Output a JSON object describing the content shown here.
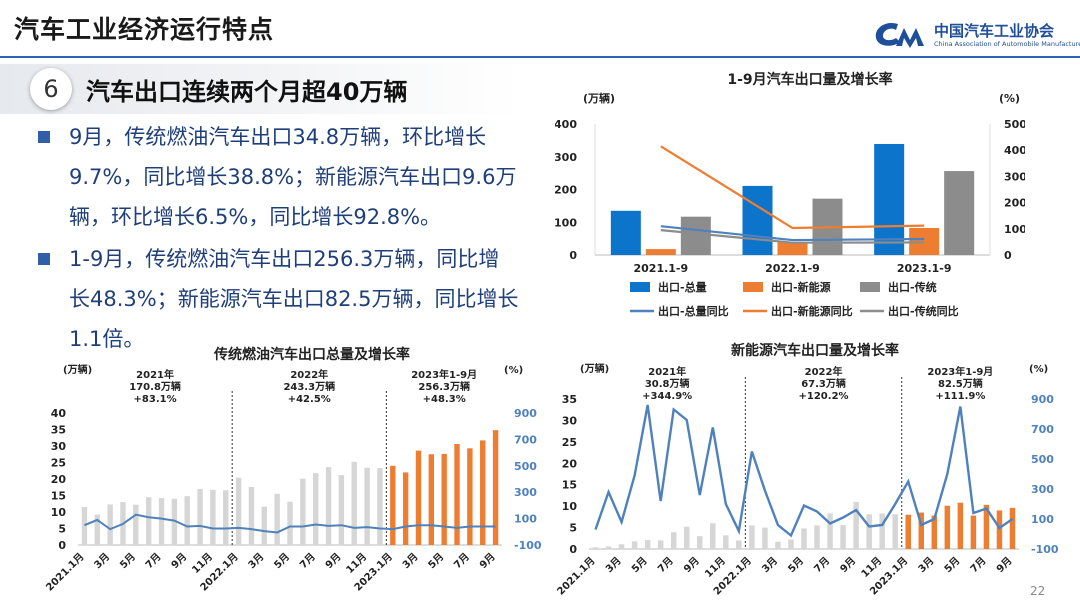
{
  "header": {
    "title": "汽车工业经济运行特点",
    "logo_cn": "中国汽车工业协会",
    "logo_en": "China Association of Automobile Manufacturers"
  },
  "section": {
    "number": "6",
    "title": "汽车出口连续两个月超40万辆"
  },
  "bullets": [
    {
      "lines": [
        "9月，传统燃油汽车出口34.8万辆，环比增长",
        "9.7%，同比增长38.8%；新能源汽车出口9.6万",
        "辆，环比增长6.5%，同比增长92.8%。"
      ]
    },
    {
      "lines": [
        "1-9月，传统燃油汽车出口256.3万辆，同比增",
        "长48.3%；新能源汽车出口82.5万辆，同比增长",
        "1.1倍。"
      ]
    }
  ],
  "page_number": "22",
  "colors": {
    "blue": "#0d74cc",
    "orange": "#ed7d31",
    "gray": "#8c8c8c",
    "lightgray": "#d6d6d6",
    "line_blue": "#4f81bd",
    "dark_line": "#5b6fa8",
    "navy": "#1f3f7a"
  },
  "chart_data": [
    {
      "id": "top",
      "type": "bar",
      "title": "1-9月汽车出口量及增长率",
      "left_unit": "(万辆)",
      "right_unit": "(%)",
      "ylim": [
        0,
        400
      ],
      "yticks": [
        0,
        100,
        200,
        300,
        400
      ],
      "y2lim": [
        0,
        500
      ],
      "y2ticks": [
        0,
        100,
        200,
        300,
        400,
        500
      ],
      "categories": [
        "2021.1-9",
        "2022.1-9",
        "2023.1-9"
      ],
      "series": [
        {
          "name": "出口-总量",
          "kind": "bar",
          "axis": "left",
          "color": "#0d74cc",
          "values": [
            135,
            211,
            339
          ]
        },
        {
          "name": "出口-新能源",
          "kind": "bar",
          "axis": "left",
          "color": "#ed7d31",
          "values": [
            18,
            39,
            82.5
          ]
        },
        {
          "name": "出口-传统",
          "kind": "bar",
          "axis": "left",
          "color": "#8c8c8c",
          "values": [
            117,
            172,
            256.3
          ]
        },
        {
          "name": "出口-总量同比",
          "kind": "line",
          "axis": "right",
          "color": "#4f81bd",
          "values": [
            110,
            57,
            61
          ]
        },
        {
          "name": "出口-新能源同比",
          "kind": "line",
          "axis": "right",
          "color": "#ed7d31",
          "values": [
            415,
            103,
            112
          ]
        },
        {
          "name": "出口-传统同比",
          "kind": "line",
          "axis": "right",
          "color": "#8c8c8c",
          "values": [
            95,
            47,
            48
          ]
        }
      ]
    },
    {
      "id": "left",
      "type": "bar",
      "title": "传统燃油汽车出口总量及增长率",
      "left_unit": "(万辆)",
      "right_unit": "(%)",
      "ylim": [
        0,
        40
      ],
      "yticks": [
        0,
        5,
        10,
        15,
        20,
        25,
        30,
        35,
        40
      ],
      "y2lim": [
        -100,
        900
      ],
      "y2ticks": [
        -100,
        100,
        300,
        500,
        700,
        900
      ],
      "x_labels": [
        "2021.1月",
        "3月",
        "5月",
        "7月",
        "9月",
        "11月",
        "2022.1月",
        "3月",
        "5月",
        "7月",
        "9月",
        "11月",
        "2023.1月",
        "3月",
        "5月",
        "7月",
        "9月"
      ],
      "annotations": [
        {
          "lines": [
            "2021年",
            "170.8万辆",
            "+83.1%"
          ]
        },
        {
          "lines": [
            "2022年",
            "243.3万辆",
            "+42.5%"
          ]
        },
        {
          "lines": [
            "2023年1-9月",
            "256.3万辆",
            "+48.3%"
          ]
        }
      ],
      "bars": [
        11.5,
        9.2,
        12.3,
        13,
        12.2,
        14.5,
        14.2,
        14,
        14.8,
        17,
        16.7,
        16.6,
        20.4,
        17.6,
        11.6,
        15.5,
        13.1,
        20.1,
        21.8,
        23.6,
        21.2,
        25.2,
        23.4,
        23.3,
        24,
        22,
        28.6,
        27.5,
        27.6,
        30.6,
        29.3,
        31.7,
        34.8
      ],
      "growth": [
        50,
        90,
        20,
        60,
        130,
        110,
        100,
        85,
        40,
        45,
        25,
        25,
        30,
        20,
        5,
        -5,
        40,
        40,
        55,
        45,
        50,
        30,
        35,
        25,
        20,
        40,
        50,
        50,
        40,
        30,
        40,
        40,
        40
      ]
    },
    {
      "id": "right",
      "type": "bar",
      "title": "新能源汽车出口量及增长率",
      "left_unit": "(万辆)",
      "right_unit": "(%)",
      "ylim": [
        0,
        35
      ],
      "yticks": [
        0,
        5,
        10,
        15,
        20,
        25,
        30,
        35
      ],
      "y2lim": [
        -100,
        900
      ],
      "y2ticks": [
        -100,
        100,
        300,
        500,
        700,
        900
      ],
      "x_labels": [
        "2021.1月",
        "3月",
        "5月",
        "7月",
        "9月",
        "11月",
        "2022.1月",
        "3月",
        "5月",
        "7月",
        "9月",
        "11月",
        "2023.1月",
        "3月",
        "5月",
        "7月",
        "9月"
      ],
      "annotations": [
        {
          "lines": [
            "2021年",
            "30.8万辆",
            "+344.9%"
          ]
        },
        {
          "lines": [
            "2022年",
            "67.3万辆",
            "+120.2%"
          ]
        },
        {
          "lines": [
            "2023年1-9月",
            "82.5万辆",
            "+111.9%"
          ]
        }
      ],
      "bars": [
        0.4,
        0.6,
        1.1,
        1.8,
        2.1,
        2,
        3.9,
        5.2,
        3,
        6,
        3.2,
        2,
        5.5,
        5,
        1.7,
        2.2,
        4.8,
        5.5,
        8.3,
        5.6,
        11,
        8.1,
        8.3,
        8.1,
        8,
        8.5,
        7.8,
        10.1,
        10.8,
        7.8,
        10.3,
        9,
        9.6
      ],
      "growth": [
        30,
        280,
        80,
        390,
        860,
        220,
        830,
        760,
        260,
        710,
        200,
        20,
        550,
        290,
        60,
        -10,
        190,
        150,
        70,
        110,
        160,
        50,
        60,
        200,
        350,
        60,
        100,
        400,
        850,
        140,
        170,
        40,
        100
      ]
    }
  ]
}
